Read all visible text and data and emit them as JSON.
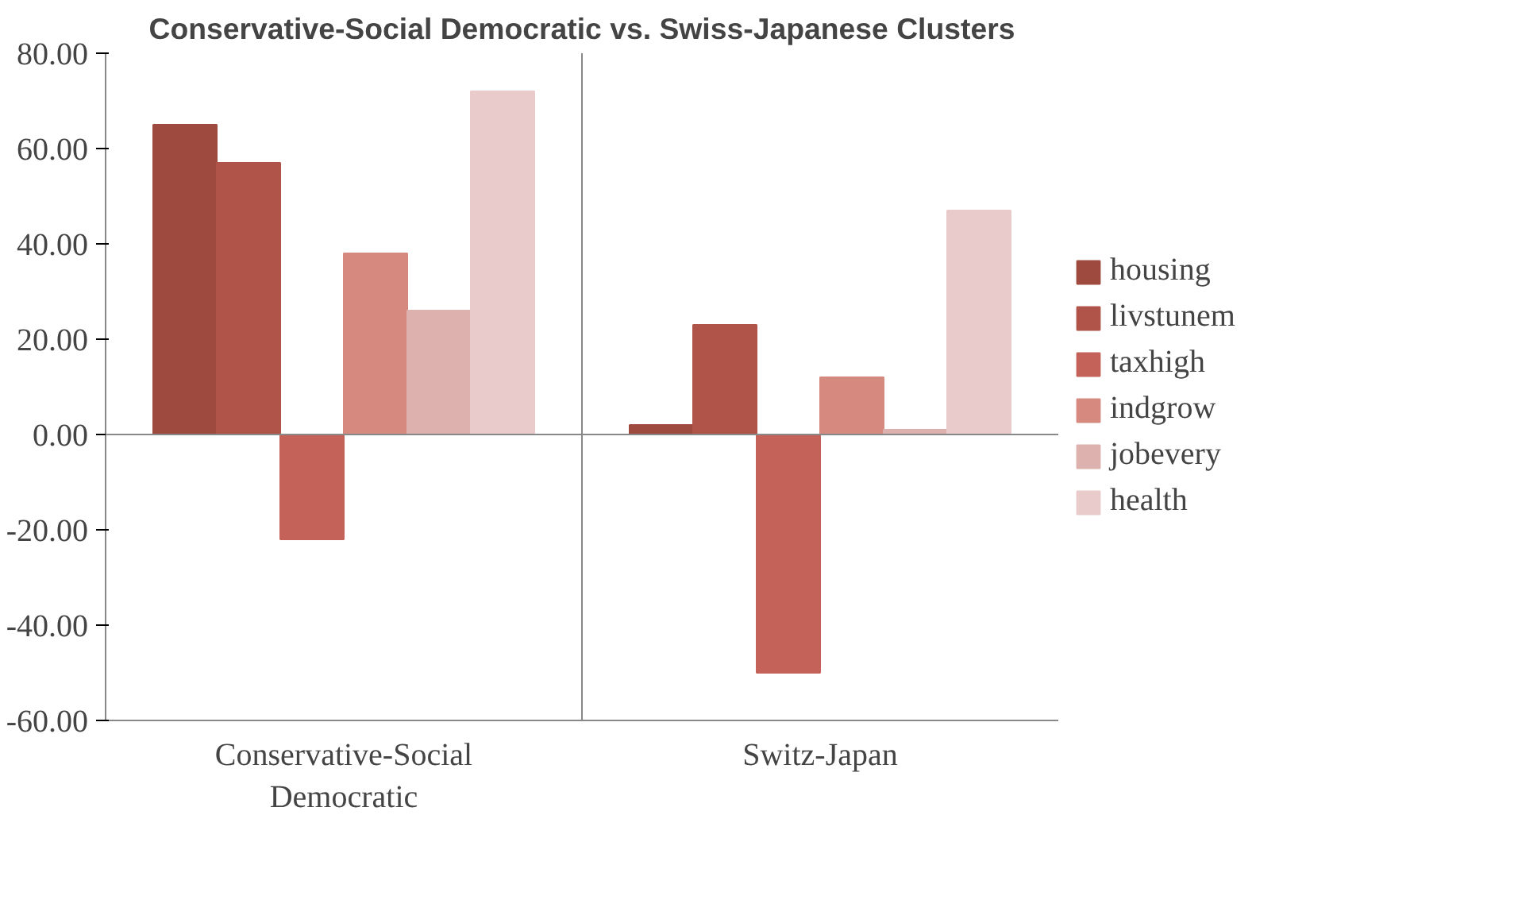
{
  "chart_data": {
    "type": "bar",
    "title": "Conservative-Social Democratic vs. Swiss-Japanese Clusters",
    "categories": [
      "Conservative-Social Democratic",
      "Switz-Japan"
    ],
    "series": [
      {
        "name": "housing",
        "color": "#9e4a3f",
        "values": [
          65,
          2
        ]
      },
      {
        "name": "livstunem",
        "color": "#b0544a",
        "values": [
          57,
          23
        ]
      },
      {
        "name": "taxhigh",
        "color": "#c4625a",
        "values": [
          -22,
          -50
        ]
      },
      {
        "name": "indgrow",
        "color": "#d6897f",
        "values": [
          38,
          12
        ]
      },
      {
        "name": "jobevery",
        "color": "#ddb1ae",
        "values": [
          26,
          1
        ]
      },
      {
        "name": "health",
        "color": "#e8cbca",
        "values": [
          72,
          47
        ]
      }
    ],
    "ylim": [
      -60,
      80
    ],
    "yticks": [
      {
        "value": -60,
        "label": "-60.00"
      },
      {
        "value": -40,
        "label": "-40.00"
      },
      {
        "value": -20,
        "label": "-20.00"
      },
      {
        "value": 0,
        "label": "0.00"
      },
      {
        "value": 20,
        "label": "20.00"
      },
      {
        "value": 40,
        "label": "40.00"
      },
      {
        "value": 60,
        "label": "60.00"
      },
      {
        "value": 80,
        "label": "80.00"
      }
    ],
    "ref_lines": [
      {
        "axis": "y",
        "value": 0,
        "color": "#888888"
      }
    ],
    "grid": "x",
    "legend": "right"
  }
}
